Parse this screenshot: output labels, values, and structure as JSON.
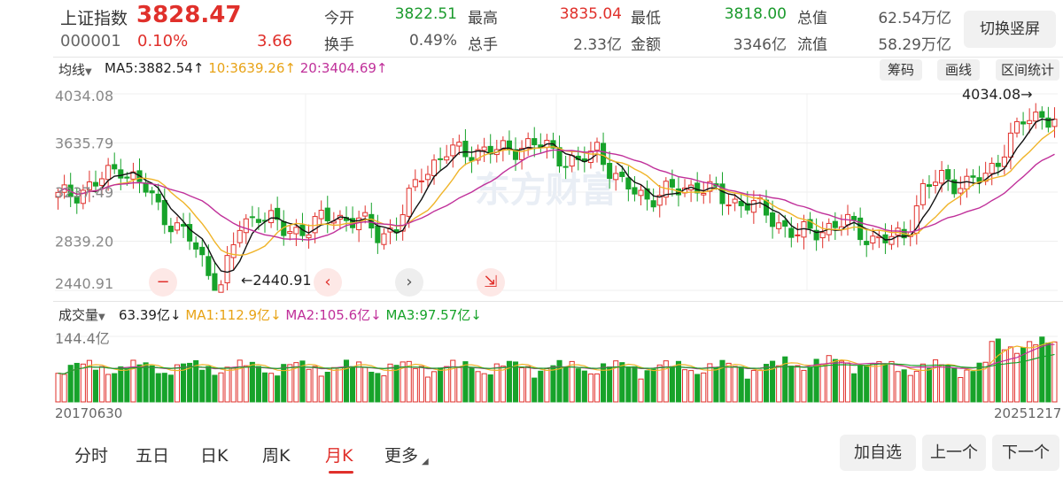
{
  "header": {
    "index_name": "上证指数",
    "index_code": "000001",
    "price": "3828.47",
    "change_pct": "0.10%",
    "change_pts": "3.66",
    "fields": [
      {
        "label": "今开",
        "value": "3822.51",
        "color": "green"
      },
      {
        "label": "最高",
        "value": "3835.04",
        "color": "red"
      },
      {
        "label": "最低",
        "value": "3818.00",
        "color": "green"
      },
      {
        "label": "总值",
        "value": "62.54万亿",
        "color": "gray"
      },
      {
        "label": "换手",
        "value": "0.49%",
        "color": "gray"
      },
      {
        "label": "总手",
        "value": "2.33亿",
        "color": "gray"
      },
      {
        "label": "金额",
        "value": "3346亿",
        "color": "gray"
      },
      {
        "label": "流值",
        "value": "58.29万亿",
        "color": "gray"
      }
    ],
    "switch_button": "切换竖屏"
  },
  "kline_bar": {
    "ma_type": "均线",
    "ma5": "MA5:3882.54",
    "ma10": "10:3639.26",
    "ma20": "20:3404.69",
    "arrow_up": "↑",
    "tools": [
      "筹码",
      "画线",
      "区间统计"
    ]
  },
  "volume_bar": {
    "label": "成交量",
    "value": "63.39亿",
    "ma1": "MA1:112.9亿",
    "ma2": "MA2:105.6亿",
    "ma3": "MA3:97.57亿",
    "arrow_down": "↓"
  },
  "chart_data": {
    "type": "candlestick",
    "y_ticks": [
      "4034.08",
      "3635.79",
      "3237.49",
      "2839.20",
      "2440.91"
    ],
    "ylim": [
      2440.91,
      4034.08
    ],
    "max_label": "4034.08",
    "min_label": "2440.91",
    "volume_max_label": "144.4亿",
    "start_date": "20170630",
    "end_date": "20251217",
    "colors": {
      "up": "#e0302b",
      "down": "#17a32a",
      "ma5": "#111111",
      "ma10": "#f0b429",
      "ma20": "#c0309a",
      "vol_ma1": "#f0b429",
      "vol_ma2": "#c0309a",
      "vol_ma3": "#17a32a"
    }
  },
  "controls": {
    "zoom_out": "−",
    "prev": "‹",
    "next": "›",
    "shrink": "⇲"
  },
  "bottom_nav": {
    "tabs": [
      "分时",
      "五日",
      "日K",
      "周K",
      "月K",
      "更多"
    ],
    "active_tab": "月K",
    "buttons": [
      "加自选",
      "上一个",
      "下一个"
    ]
  }
}
